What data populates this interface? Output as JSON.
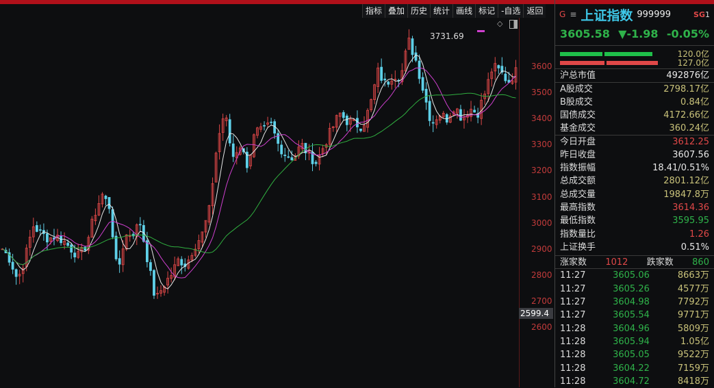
{
  "toolbar": [
    "指标",
    "叠加",
    "历史",
    "统计",
    "画线",
    "标记",
    "-自选",
    "返回"
  ],
  "header": {
    "g_icon": "G",
    "menu_icon": "≡",
    "name": "上证指数",
    "code": "999999",
    "badge": "SG",
    "badge_num": "1",
    "price": "3605.58",
    "change": "▼-1.98",
    "pct": "-0.05%"
  },
  "bars": [
    {
      "value": "120.0亿",
      "color": "#1fc04a"
    },
    {
      "value": "127.0亿",
      "color": "#e04848"
    }
  ],
  "stats": [
    {
      "label": "沪总市值",
      "value": "492876亿",
      "cls": "w"
    },
    {
      "label": "A股成交",
      "value": "2798.17亿",
      "cls": "y"
    },
    {
      "label": "B股成交",
      "value": "0.84亿",
      "cls": "y"
    },
    {
      "label": "国债成交",
      "value": "4172.66亿",
      "cls": "y"
    },
    {
      "label": "基金成交",
      "value": "360.24亿",
      "cls": "y"
    },
    {
      "label": "今日开盘",
      "value": "3612.25",
      "cls": "r"
    },
    {
      "label": "昨日收盘",
      "value": "3607.56",
      "cls": "w"
    },
    {
      "label": "指数振幅",
      "value": "18.41/0.51%",
      "cls": "w"
    },
    {
      "label": "总成交额",
      "value": "2801.12亿",
      "cls": "y"
    },
    {
      "label": "总成交量",
      "value": "19847.8万",
      "cls": "y"
    },
    {
      "label": "最高指数",
      "value": "3614.36",
      "cls": "r"
    },
    {
      "label": "最低指数",
      "value": "3595.95",
      "cls": "g"
    },
    {
      "label": "指数量比",
      "value": "1.26",
      "cls": "r"
    },
    {
      "label": "上证换手",
      "value": "0.51%",
      "cls": "w"
    }
  ],
  "breadth": {
    "up_label": "涨家数",
    "up": "1012",
    "down_label": "跌家数",
    "down": "860"
  },
  "ticks": [
    [
      "11:27",
      "3605.06",
      "8663万"
    ],
    [
      "11:27",
      "3605.26",
      "4577万"
    ],
    [
      "11:27",
      "3604.98",
      "7792万"
    ],
    [
      "11:27",
      "3605.54",
      "9771万"
    ],
    [
      "11:28",
      "3604.96",
      "5809万"
    ],
    [
      "11:28",
      "3605.94",
      "1.05亿"
    ],
    [
      "11:28",
      "3605.05",
      "9522万"
    ],
    [
      "11:28",
      "3604.22",
      "7159万"
    ],
    [
      "11:28",
      "3604.72",
      "8418万"
    ]
  ],
  "chart_data": {
    "type": "candlestick",
    "y_ticks": [
      "3600",
      "3500",
      "3400",
      "3300",
      "3200",
      "3100",
      "3000",
      "2900",
      "2800",
      "2700",
      "2600"
    ],
    "ylim": [
      2570,
      3760
    ],
    "high_label": "3731.69",
    "low_label": "2599.4",
    "approx_close": [
      2900,
      2860,
      2780,
      2870,
      2990,
      2960,
      2940,
      2950,
      2930,
      2900,
      2870,
      2920,
      3030,
      3110,
      3060,
      2800,
      2950,
      2960,
      3000,
      2850,
      2700,
      2760,
      2800,
      2860,
      2840,
      2910,
      2950,
      3050,
      3300,
      3430,
      3250,
      3300,
      3220,
      3350,
      3350,
      3380,
      3300,
      3260,
      3250,
      3300,
      3260,
      3230,
      3300,
      3360,
      3420,
      3390,
      3380,
      3370,
      3450,
      3580,
      3530,
      3570,
      3560,
      3700,
      3620,
      3500,
      3380,
      3420,
      3400,
      3450,
      3400,
      3440,
      3420,
      3500,
      3600,
      3580,
      3540,
      3580
    ],
    "colors": {
      "up": "#e04848",
      "down": "#5fd0e8",
      "ma5": "#e8e8e8",
      "ma10": "#d040d0",
      "ma30": "#30b040",
      "axis": "#c23b3b"
    }
  }
}
